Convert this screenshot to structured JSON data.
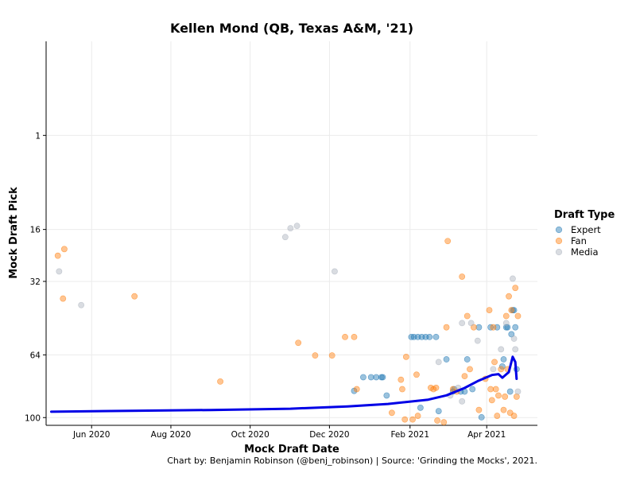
{
  "chart_data": {
    "type": "scatter",
    "title": "Kellen Mond (QB, Texas A&M, '21)",
    "xlabel": "Mock Draft Date",
    "ylabel": "Mock Draft Pick",
    "caption": "Chart by: Benjamin Robinson (@benj_robinson) | Source: 'Grinding the Mocks', 2021.",
    "x_axis": {
      "type": "date",
      "range": [
        "2020-04-27",
        "2021-05-10"
      ],
      "ticks": [
        {
          "value": "2020-06-01",
          "label": "Jun 2020"
        },
        {
          "value": "2020-08-01",
          "label": "Aug 2020"
        },
        {
          "value": "2020-10-01",
          "label": "Oct 2020"
        },
        {
          "value": "2020-12-01",
          "label": "Dec 2020"
        },
        {
          "value": "2021-02-01",
          "label": "Feb 2021"
        },
        {
          "value": "2021-04-01",
          "label": "Apr 2021"
        }
      ]
    },
    "y_axis": {
      "scale": "sqrt",
      "reversed": true,
      "range": [
        -4,
        105
      ],
      "ticks": [
        1,
        16,
        32,
        64,
        100
      ]
    },
    "grid": true,
    "legend": {
      "title": "Draft Type",
      "position": "right",
      "entries": [
        {
          "name": "Expert",
          "color": "#1f77b4"
        },
        {
          "name": "Fan",
          "color": "#ff7f0e"
        },
        {
          "name": "Media",
          "color": "#aab2bd"
        }
      ]
    },
    "point_opacity": 0.45,
    "trend_line": {
      "color": "#0000e6",
      "points": [
        [
          "2020-05-01",
          96.3
        ],
        [
          "2020-07-01",
          95.7
        ],
        [
          "2020-09-01",
          95.2
        ],
        [
          "2020-11-01",
          94.4
        ],
        [
          "2020-12-15",
          93.0
        ],
        [
          "2021-01-15",
          91.5
        ],
        [
          "2021-02-15",
          88.9
        ],
        [
          "2021-03-01",
          86.3
        ],
        [
          "2021-03-15",
          82.0
        ],
        [
          "2021-03-25",
          78.1
        ],
        [
          "2021-04-05",
          74.7
        ],
        [
          "2021-04-10",
          74.2
        ],
        [
          "2021-04-13",
          76.2
        ],
        [
          "2021-04-18",
          73.1
        ],
        [
          "2021-04-21",
          65.0
        ],
        [
          "2021-04-23",
          67.7
        ],
        [
          "2021-04-24",
          76.8
        ]
      ]
    },
    "series": [
      {
        "name": "Expert",
        "color": "#1f77b4",
        "points": [
          [
            "2020-12-20",
            83.7
          ],
          [
            "2020-12-27",
            75.9
          ],
          [
            "2021-01-02",
            75.9
          ],
          [
            "2021-01-06",
            75.9
          ],
          [
            "2021-01-10",
            75.9
          ],
          [
            "2021-01-11",
            75.9
          ],
          [
            "2021-01-14",
            86.4
          ],
          [
            "2021-02-02",
            55.2
          ],
          [
            "2021-02-04",
            55.2
          ],
          [
            "2021-02-07",
            55.2
          ],
          [
            "2021-02-10",
            55.2
          ],
          [
            "2021-02-13",
            55.2
          ],
          [
            "2021-02-16",
            55.2
          ],
          [
            "2021-02-21",
            55.2
          ],
          [
            "2021-02-09",
            93.8
          ],
          [
            "2021-02-23",
            95.9
          ],
          [
            "2021-03-01",
            66.3
          ],
          [
            "2021-03-06",
            84.1
          ],
          [
            "2021-03-07",
            82.7
          ],
          [
            "2021-03-12",
            84.1
          ],
          [
            "2021-03-15",
            84.1
          ],
          [
            "2021-03-17",
            66.3
          ],
          [
            "2021-03-21",
            82.7
          ],
          [
            "2021-03-26",
            50.7
          ],
          [
            "2021-03-28",
            99.8
          ],
          [
            "2021-04-04",
            50.7
          ],
          [
            "2021-04-09",
            50.7
          ],
          [
            "2021-04-13",
            70.0
          ],
          [
            "2021-04-14",
            66.3
          ],
          [
            "2021-04-16",
            50.7
          ],
          [
            "2021-04-17",
            50.7
          ],
          [
            "2021-04-19",
            84.1
          ],
          [
            "2021-04-20",
            53.9
          ],
          [
            "2021-04-21",
            43.2
          ],
          [
            "2021-04-22",
            43.2
          ],
          [
            "2021-04-23",
            50.7
          ],
          [
            "2021-04-24",
            71.5
          ]
        ]
      },
      {
        "name": "Fan",
        "color": "#ff7f0e",
        "points": [
          [
            "2020-05-06",
            23.4
          ],
          [
            "2020-05-11",
            21.4
          ],
          [
            "2020-05-10",
            38.5
          ],
          [
            "2020-07-04",
            37.6
          ],
          [
            "2020-09-08",
            78.3
          ],
          [
            "2020-11-07",
            58.0
          ],
          [
            "2020-11-20",
            64.3
          ],
          [
            "2020-12-03",
            64.3
          ],
          [
            "2020-12-13",
            55.2
          ],
          [
            "2020-12-20",
            55.2
          ],
          [
            "2020-12-22",
            82.7
          ],
          [
            "2021-01-18",
            97.0
          ],
          [
            "2021-01-25",
            77.3
          ],
          [
            "2021-01-26",
            82.7
          ],
          [
            "2021-01-28",
            101.2
          ],
          [
            "2021-01-29",
            65.0
          ],
          [
            "2021-02-03",
            101.2
          ],
          [
            "2021-02-06",
            74.5
          ],
          [
            "2021-02-07",
            98.9
          ],
          [
            "2021-02-17",
            81.9
          ],
          [
            "2021-02-19",
            82.7
          ],
          [
            "2021-02-21",
            81.9
          ],
          [
            "2021-02-22",
            101.9
          ],
          [
            "2021-02-27",
            103.0
          ],
          [
            "2021-03-01",
            50.7
          ],
          [
            "2021-03-02",
            19.1
          ],
          [
            "2021-03-06",
            82.7
          ],
          [
            "2021-03-09",
            84.1
          ],
          [
            "2021-03-13",
            30.3
          ],
          [
            "2021-03-15",
            75.3
          ],
          [
            "2021-03-17",
            45.7
          ],
          [
            "2021-03-19",
            71.5
          ],
          [
            "2021-03-22",
            50.7
          ],
          [
            "2021-03-26",
            95.2
          ],
          [
            "2021-03-31",
            76.8
          ],
          [
            "2021-04-03",
            43.2
          ],
          [
            "2021-04-04",
            82.7
          ],
          [
            "2021-04-05",
            89.2
          ],
          [
            "2021-04-06",
            50.7
          ],
          [
            "2021-04-07",
            67.7
          ],
          [
            "2021-04-08",
            82.7
          ],
          [
            "2021-04-09",
            98.9
          ],
          [
            "2021-04-10",
            86.4
          ],
          [
            "2021-04-12",
            71.5
          ],
          [
            "2021-04-14",
            95.2
          ],
          [
            "2021-04-15",
            87.1
          ],
          [
            "2021-04-16",
            45.7
          ],
          [
            "2021-04-17",
            71.5
          ],
          [
            "2021-04-18",
            37.6
          ],
          [
            "2021-04-19",
            97.0
          ],
          [
            "2021-04-20",
            43.2
          ],
          [
            "2021-04-22",
            98.9
          ],
          [
            "2021-04-23",
            34.4
          ],
          [
            "2021-04-24",
            87.1
          ],
          [
            "2021-04-25",
            45.7
          ]
        ]
      },
      {
        "name": "Media",
        "color": "#aab2bd",
        "points": [
          [
            "2020-05-07",
            28.5
          ],
          [
            "2020-05-24",
            41.1
          ],
          [
            "2020-10-28",
            18.0
          ],
          [
            "2020-11-01",
            15.7
          ],
          [
            "2020-11-06",
            15.1
          ],
          [
            "2020-12-05",
            28.5
          ],
          [
            "2021-02-23",
            67.7
          ],
          [
            "2021-03-04",
            86.4
          ],
          [
            "2021-03-10",
            81.9
          ],
          [
            "2021-03-13",
            89.9
          ],
          [
            "2021-03-13",
            48.8
          ],
          [
            "2021-03-20",
            48.8
          ],
          [
            "2021-03-25",
            57.0
          ],
          [
            "2021-04-06",
            71.5
          ],
          [
            "2021-04-12",
            61.2
          ],
          [
            "2021-04-16",
            48.8
          ],
          [
            "2021-04-21",
            31.0
          ],
          [
            "2021-04-22",
            56.0
          ],
          [
            "2021-04-23",
            61.2
          ],
          [
            "2021-04-25",
            84.1
          ]
        ]
      }
    ]
  }
}
